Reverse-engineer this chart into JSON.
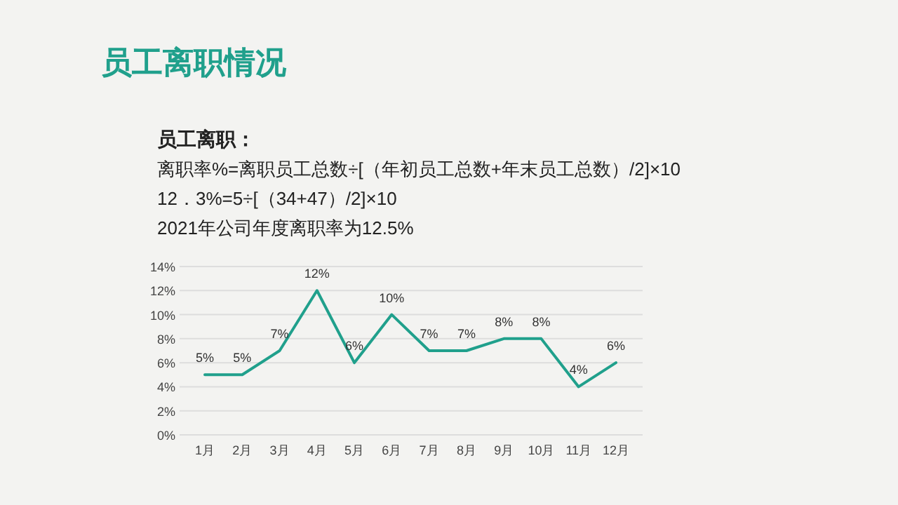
{
  "chart_data": {
    "type": "line",
    "title": "员工离职情况",
    "annotations": [
      "员工离职：",
      "离职率%=离职员工总数÷[（年初员工总数+年末员工总数）/2]×10",
      "12．3%=5÷[（34+47）/2]×10",
      "2021年公司年度离职率为12.5%"
    ],
    "categories": [
      "1月",
      "2月",
      "3月",
      "4月",
      "5月",
      "6月",
      "7月",
      "8月",
      "9月",
      "10月",
      "11月",
      "12月"
    ],
    "series": [
      {
        "color": "#20a08c",
        "values": [
          5,
          5,
          7,
          12,
          6,
          10,
          7,
          7,
          8,
          8,
          4,
          6
        ],
        "value_labels": [
          "5%",
          "5%",
          "7%",
          "12%",
          "6%",
          "10%",
          "7%",
          "7%",
          "8%",
          "8%",
          "4%",
          "6%"
        ]
      }
    ],
    "ylim": [
      0,
      14
    ],
    "yticks": [
      {
        "value": 0,
        "label": "0%"
      },
      {
        "value": 2,
        "label": "2%"
      },
      {
        "value": 4,
        "label": "4%"
      },
      {
        "value": 6,
        "label": "6%"
      },
      {
        "value": 8,
        "label": "8%"
      },
      {
        "value": 10,
        "label": "10%"
      },
      {
        "value": 12,
        "label": "12%"
      },
      {
        "value": 14,
        "label": "14%"
      }
    ],
    "grid": "y",
    "marker": "none",
    "line_style": "solid"
  }
}
